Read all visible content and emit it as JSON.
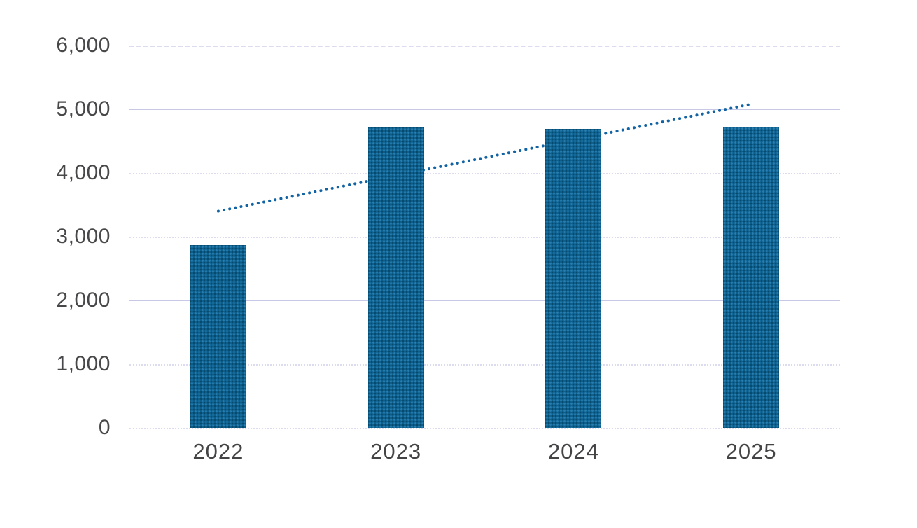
{
  "chart": {
    "background_color": "#ffffff",
    "bar_color": "#0d6190",
    "bar_texture_light": "#2c81b2",
    "bar_texture_dark": "#08486a",
    "trend_color": "#1263a3",
    "gridline_dotted_color": "#dcdcf1",
    "gridline_solid_color": "#c7c8e6",
    "axis_label_color": "#48484b"
  },
  "chart_data": {
    "type": "bar",
    "title": "",
    "xlabel": "",
    "ylabel": "",
    "categories": [
      "2022",
      "2023",
      "2024",
      "2025"
    ],
    "series": [
      {
        "name": "bars",
        "type": "bar",
        "values": [
          2870,
          4710,
          4690,
          4720
        ]
      },
      {
        "name": "linear-trendline",
        "type": "dotted-line",
        "values": [
          3400,
          3960,
          4520,
          5080
        ]
      }
    ],
    "ylim": [
      0,
      6000
    ],
    "ytick_step": 1000,
    "yticks": [
      0,
      1000,
      2000,
      3000,
      4000,
      5000,
      6000
    ],
    "ytick_labels": [
      "0",
      "1,000",
      "2,000",
      "3,000",
      "4,000",
      "5,000",
      "6,000"
    ],
    "grid": true,
    "legend": false
  }
}
